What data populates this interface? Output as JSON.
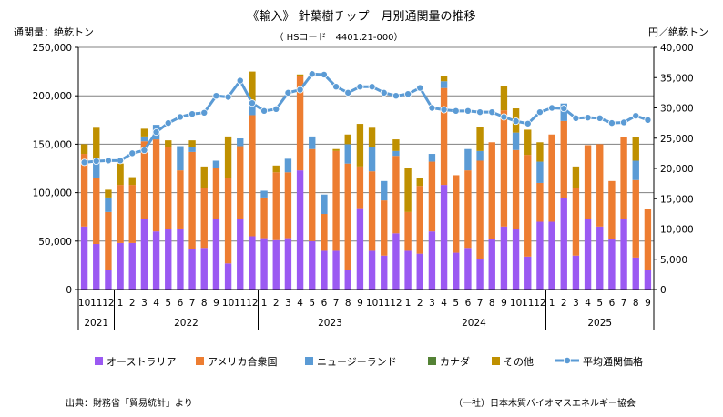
{
  "chart_data": {
    "type": "bar+line",
    "title": "《輸入》 針葉樹チップ　月別通関量の推移",
    "subtitle": "（ HSコード　4401.21-000）",
    "ylabel_left": "通関量：絶乾トン",
    "ylabel_right": "円／絶乾トン",
    "ylim_left": [
      0,
      250000
    ],
    "ylim_right": [
      0,
      40000
    ],
    "yticks_left": [
      "0",
      "50,000",
      "100,000",
      "150,000",
      "200,000",
      "250,000"
    ],
    "yticks_right": [
      "0",
      "5,000",
      "10,000",
      "15,000",
      "20,000",
      "25,000",
      "30,000",
      "35,000",
      "40,000"
    ],
    "x_month_labels": [
      "10",
      "11",
      "12",
      "1",
      "2",
      "3",
      "4",
      "5",
      "6",
      "7",
      "8",
      "9",
      "10",
      "11",
      "12",
      "1",
      "2",
      "3",
      "4",
      "5",
      "6",
      "7",
      "8",
      "9",
      "10",
      "11",
      "12",
      "1",
      "2",
      "3",
      "4",
      "5",
      "6",
      "7",
      "8",
      "9",
      "10",
      "11",
      "12",
      "1",
      "2",
      "3",
      "4",
      "5",
      "6",
      "7",
      "8",
      "9"
    ],
    "years": [
      {
        "label": "2021",
        "start": 0,
        "end": 3
      },
      {
        "label": "2022",
        "start": 3,
        "end": 15
      },
      {
        "label": "2023",
        "start": 15,
        "end": 27
      },
      {
        "label": "2024",
        "start": 27,
        "end": 39
      },
      {
        "label": "2025",
        "start": 39,
        "end": 48
      }
    ],
    "series": [
      {
        "name": "オーストラリア",
        "color": "#9b59f2",
        "values": [
          65000,
          47000,
          20000,
          48000,
          48000,
          73000,
          60000,
          62000,
          63000,
          42000,
          43000,
          73000,
          27000,
          73000,
          55000,
          53000,
          51000,
          53000,
          123000,
          50000,
          40000,
          40000,
          20000,
          84000,
          40000,
          35000,
          58000,
          40000,
          37000,
          60000,
          108000,
          38000,
          43000,
          31000,
          52000,
          65000,
          62000,
          34000,
          70000,
          70000,
          94000,
          35000,
          73000,
          65000,
          52000,
          73000,
          33000,
          20000
        ]
      },
      {
        "name": "アメリカ合衆国",
        "color": "#ed7d31",
        "values": [
          75000,
          68000,
          60000,
          60000,
          60000,
          80000,
          95000,
          85000,
          60000,
          100000,
          62000,
          52000,
          88000,
          75000,
          125000,
          42000,
          70000,
          68000,
          97000,
          95000,
          38000,
          103000,
          110000,
          43000,
          82000,
          57000,
          80000,
          40000,
          70000,
          72000,
          100000,
          80000,
          80000,
          102000,
          100000,
          120000,
          82000,
          105000,
          40000,
          90000,
          80000,
          70000,
          76000,
          85000,
          60000,
          84000,
          80000,
          63000
        ]
      },
      {
        "name": "ニュージーランド",
        "color": "#5b9bd5",
        "values": [
          0,
          20000,
          15000,
          0,
          0,
          5000,
          15000,
          0,
          25000,
          5000,
          0,
          8000,
          0,
          8000,
          15000,
          7000,
          0,
          14000,
          0,
          13000,
          20000,
          0,
          20000,
          0,
          25000,
          20000,
          5000,
          0,
          0,
          8000,
          7000,
          0,
          22000,
          10000,
          0,
          0,
          18000,
          0,
          22000,
          0,
          18000,
          0,
          0,
          0,
          0,
          0,
          20000,
          0
        ]
      },
      {
        "name": "カナダ",
        "color": "#548235",
        "values": [
          0,
          0,
          0,
          0,
          0,
          0,
          0,
          0,
          0,
          0,
          0,
          0,
          0,
          0,
          0,
          0,
          0,
          0,
          0,
          0,
          0,
          0,
          0,
          0,
          0,
          0,
          0,
          0,
          0,
          0,
          0,
          0,
          0,
          0,
          0,
          0,
          0,
          0,
          0,
          0,
          0,
          0,
          0,
          0,
          0,
          0,
          0,
          0
        ]
      },
      {
        "name": "その他",
        "color": "#bf9000",
        "values": [
          10000,
          32000,
          8000,
          22000,
          8000,
          8000,
          0,
          7000,
          0,
          7000,
          22000,
          0,
          43000,
          0,
          30000,
          0,
          7000,
          0,
          2000,
          0,
          0,
          2000,
          10000,
          44000,
          20000,
          0,
          12000,
          45000,
          8000,
          0,
          5000,
          0,
          0,
          25000,
          0,
          25000,
          25000,
          26000,
          20000,
          0,
          0,
          22000,
          0,
          0,
          0,
          0,
          24000,
          0
        ]
      }
    ],
    "line": {
      "name": "平均通関価格",
      "color": "#5b9bd5",
      "values": [
        21000,
        21200,
        21300,
        21300,
        22500,
        23000,
        26000,
        27500,
        28500,
        29000,
        29200,
        32000,
        31800,
        34500,
        30800,
        29500,
        29800,
        32500,
        33000,
        35600,
        35500,
        33500,
        32500,
        33500,
        33500,
        32500,
        32000,
        32300,
        33300,
        30000,
        29700,
        29500,
        29500,
        29300,
        29300,
        28500,
        27800,
        27400,
        29300,
        30000,
        29900,
        28300,
        28400,
        28300,
        27500,
        27600,
        28700,
        28000
      ]
    },
    "legend": [
      "オーストラリア",
      "アメリカ合衆国",
      "ニュージーランド",
      "カナダ",
      "その他",
      "平均通関価格"
    ],
    "legend_position": "bottom",
    "source_text": "出典：財務省「貿易統計」より",
    "org_text": "（一社）日本木質バイオマスエネルギー協会"
  }
}
